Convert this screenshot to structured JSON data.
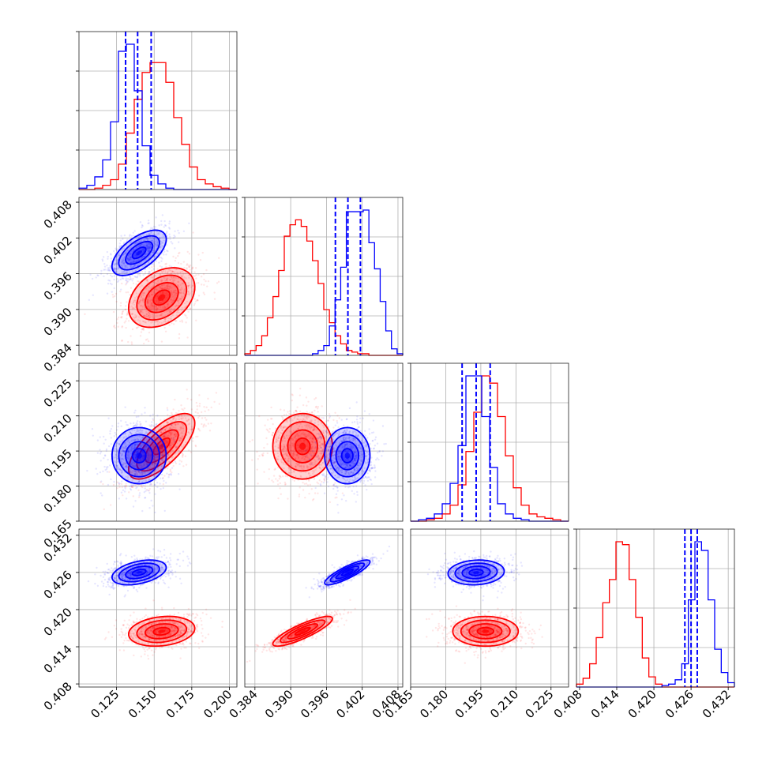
{
  "chart_data": {
    "type": "corner",
    "series": [
      {
        "name": "",
        "color": "#0000ff"
      },
      {
        "name": "",
        "color": "#ff0000"
      }
    ],
    "parameters": [
      {
        "ticks": [
          0.125,
          0.15,
          0.175,
          0.2
        ],
        "tick_labels": [
          "0.125",
          "0.150",
          "0.175",
          "0.200"
        ],
        "lim": [
          0.1,
          0.205
        ]
      },
      {
        "ticks": [
          0.384,
          0.39,
          0.396,
          0.402,
          0.408
        ],
        "tick_labels": [
          "0.384",
          "0.390",
          "0.396",
          "0.402",
          "0.408"
        ],
        "lim": [
          0.3823,
          0.4088
        ]
      },
      {
        "ticks": [
          0.165,
          0.18,
          0.195,
          0.21,
          0.225
        ],
        "tick_labels": [
          "0.165",
          "0.180",
          "0.195",
          "0.210",
          "0.225"
        ],
        "lim": [
          0.165,
          0.2325
        ]
      },
      {
        "ticks": [
          0.408,
          0.414,
          0.42,
          0.426,
          0.432
        ],
        "tick_labels": [
          "0.408",
          "0.414",
          "0.420",
          "0.426",
          "0.432"
        ],
        "lim": [
          0.4075,
          0.433
        ]
      }
    ],
    "means": {
      "blue": [
        0.14,
        0.3995,
        0.193,
        0.426
      ],
      "red": [
        0.155,
        0.392,
        0.197,
        0.4165
      ]
    },
    "sigmas": {
      "blue": [
        0.009,
        0.0019,
        0.006,
        0.001
      ],
      "red": [
        0.011,
        0.0025,
        0.007,
        0.0012
      ]
    },
    "correlations": {
      "blue": {
        "1-0": 0.6,
        "2-0": 0.0,
        "2-1": 0.0,
        "3-0": 0.4,
        "3-1": 0.85,
        "3-2": 0.1
      },
      "red": {
        "1-0": 0.35,
        "2-0": 0.7,
        "2-1": 0.0,
        "3-0": 0.2,
        "3-1": 0.85,
        "3-2": 0.0
      }
    },
    "quantiles_blue": [
      [
        0.131,
        0.139,
        0.148
      ],
      [
        0.3975,
        0.3996,
        0.4017
      ],
      [
        0.187,
        0.193,
        0.199
      ],
      [
        0.425,
        0.426,
        0.427
      ]
    ],
    "histograms": {
      "blue": [
        [
          1,
          3,
          9,
          21,
          48,
          98,
          103,
          70,
          31,
          10,
          4,
          1,
          0,
          0,
          0,
          0,
          0,
          0,
          0,
          0
        ],
        [
          0,
          0,
          0,
          0,
          0,
          0,
          0,
          0,
          0,
          0,
          0,
          0,
          1,
          3,
          6,
          18,
          34,
          54,
          88,
          88,
          88,
          89,
          69,
          53,
          33,
          15,
          4,
          1
        ],
        [
          0,
          1,
          2,
          5,
          12,
          26,
          52,
          100,
          100,
          72,
          37,
          12,
          5,
          2,
          1,
          0,
          0,
          0,
          0,
          0
        ],
        [
          0,
          0,
          0,
          0,
          0,
          0,
          0,
          0,
          0,
          0,
          0,
          0,
          0,
          1,
          2,
          5,
          16,
          60,
          100,
          94,
          60,
          26,
          10,
          3
        ]
      ],
      "red": [
        [
          0,
          0,
          1,
          3,
          7,
          18,
          40,
          64,
          83,
          90,
          90,
          76,
          51,
          32,
          16,
          7,
          4,
          2,
          1,
          0
        ],
        [
          1,
          3,
          6,
          12,
          23,
          36,
          52,
          73,
          80,
          83,
          79,
          70,
          58,
          44,
          28,
          20,
          12,
          7,
          3,
          2,
          1,
          1,
          0,
          0,
          0,
          0,
          0,
          0
        ],
        [
          0,
          0,
          1,
          2,
          5,
          11,
          25,
          48,
          75,
          100,
          95,
          72,
          45,
          23,
          11,
          5,
          3,
          2,
          1,
          0
        ],
        [
          2,
          6,
          16,
          34,
          58,
          74,
          100,
          98,
          74,
          48,
          20,
          7,
          2,
          0,
          0,
          0,
          0,
          0,
          0,
          0,
          0,
          0,
          0,
          0
        ]
      ]
    }
  }
}
